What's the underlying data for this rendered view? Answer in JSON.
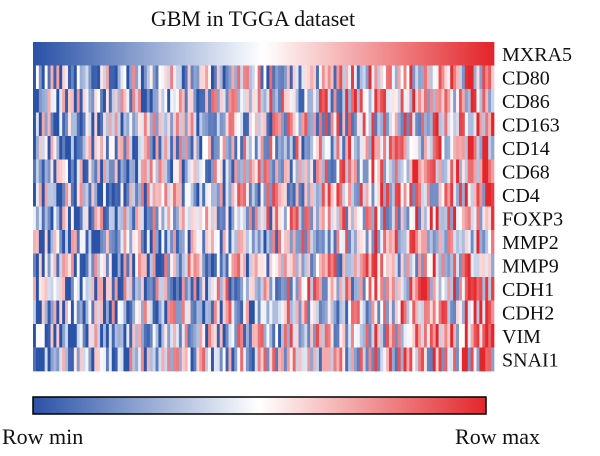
{
  "chart_data": {
    "type": "heatmap",
    "title": "GBM in TGGA dataset",
    "rows": [
      "MXRA5",
      "CD80",
      "CD86",
      "CD163",
      "CD14",
      "CD68",
      "CD4",
      "FOXP3",
      "MMP2",
      "MMP9",
      "CDH1",
      "CDH2",
      "VIM",
      "SNAI1"
    ],
    "sort_by": "MXRA5",
    "n_samples": 158,
    "scale": "row-normalized",
    "color_scale": {
      "low": "#2a52a7",
      "mid": "#ffffff",
      "high": "#e3262b"
    },
    "legend": {
      "min_label": "Row min",
      "max_label": "Row max",
      "placement": "bottom"
    }
  }
}
